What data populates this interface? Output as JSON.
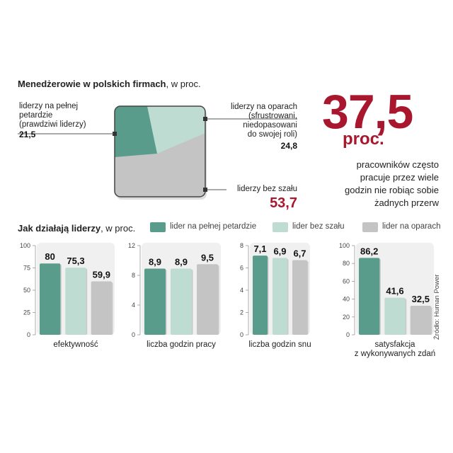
{
  "section1": {
    "title_bold": "Menedżerowie w polskich firmach",
    "title_rest": ", w proc.",
    "labels": {
      "full": [
        "liderzy na pełnej",
        "petardzie",
        "(prawdziwi liderzy)"
      ],
      "full_value": "21,5",
      "support": [
        "liderzy na oparach",
        "(sfrustrowani,",
        "niedopasowani",
        "do swojej roli)"
      ],
      "support_value": "24,8",
      "nohype": "liderzy bez szału",
      "nohype_value": "53,7"
    }
  },
  "highlight": {
    "number": "37,5",
    "unit": "proc.",
    "text": [
      "pracowników często",
      "pracuje przez wiele",
      "godzin nie robiąc sobie",
      "żadnych przerw"
    ]
  },
  "section2": {
    "title_bold": "Jak działają liderzy",
    "title_rest": ", w proc."
  },
  "legend": [
    {
      "label": "lider na pełnej petardzie",
      "color": "#5a9c8c"
    },
    {
      "label": "lider bez szału",
      "color": "#bfdcd3"
    },
    {
      "label": "lider na oparach",
      "color": "#c4c4c4"
    }
  ],
  "source": "Źródło: Human Power",
  "colors": {
    "full": "#5a9c8c",
    "nohype": "#bfdcd3",
    "support": "#c4c4c4",
    "accent": "#a8172e"
  },
  "chart_data": [
    {
      "type": "pie",
      "title": "Menedżerowie w polskich firmach, w proc.",
      "categories": [
        "liderzy na pełnej petardzie (prawdziwi liderzy)",
        "liderzy na oparach (sfrustrowani, niedopasowani do swojej roli)",
        "liderzy bez szału"
      ],
      "values": [
        21.5,
        24.8,
        53.7
      ]
    },
    {
      "type": "bar",
      "xlabel": "efektywność",
      "ylim": [
        0,
        100
      ],
      "yticks": [
        0,
        25,
        50,
        75,
        100
      ],
      "values": [
        80,
        75.3,
        59.9
      ],
      "labels": [
        "80",
        "75,3",
        "59,9"
      ]
    },
    {
      "type": "bar",
      "xlabel": "liczba godzin pracy",
      "ylim": [
        0,
        12
      ],
      "yticks": [
        0,
        4,
        8,
        12
      ],
      "values": [
        8.9,
        8.9,
        9.5
      ],
      "labels": [
        "8,9",
        "8,9",
        "9,5"
      ]
    },
    {
      "type": "bar",
      "xlabel": "liczba godzin snu",
      "ylim": [
        0,
        8
      ],
      "yticks": [
        0,
        2,
        4,
        6,
        8
      ],
      "values": [
        7.1,
        6.9,
        6.7
      ],
      "labels": [
        "7,1",
        "6,9",
        "6,7"
      ]
    },
    {
      "type": "bar",
      "xlabel": "satysfakcja\nz wykonywanych zdań",
      "ylim": [
        0,
        100
      ],
      "yticks": [
        0,
        20,
        40,
        60,
        80,
        100
      ],
      "values": [
        86.2,
        41.6,
        32.5
      ],
      "labels": [
        "86,2",
        "41,6",
        "32,5"
      ]
    }
  ]
}
